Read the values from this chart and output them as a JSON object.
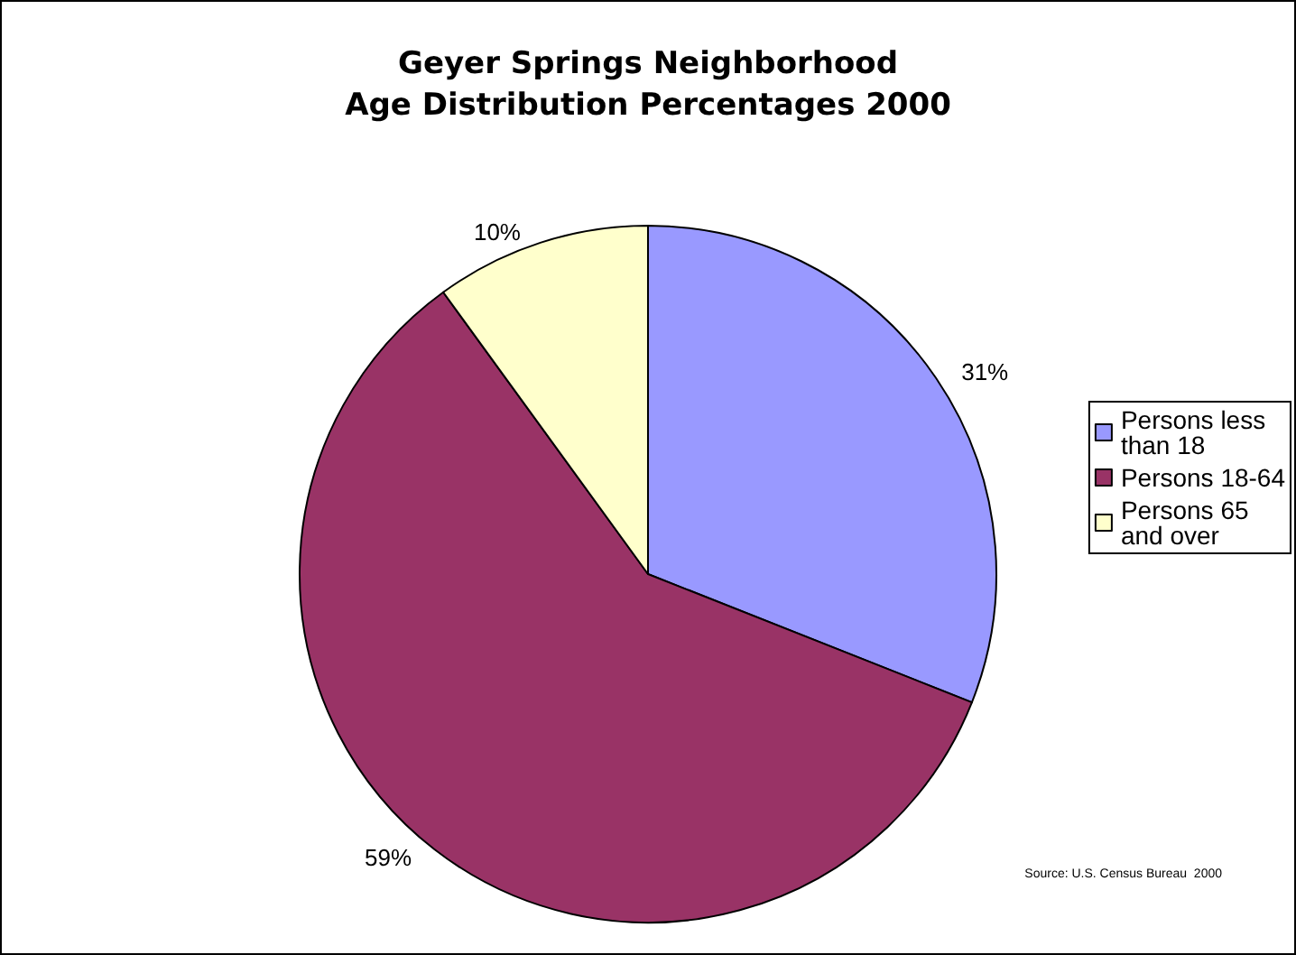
{
  "chart_data": {
    "type": "pie",
    "title": "Geyer Springs Neighborhood\nAge Distribution Percentages 2000",
    "categories": [
      "Persons less than 18",
      "Persons 18-64",
      "Persons 65 and over"
    ],
    "values": [
      31,
      59,
      10
    ],
    "colors": [
      "#9999ff",
      "#993366",
      "#ffffcc"
    ],
    "value_labels": [
      "31%",
      "59%",
      "10%"
    ],
    "legend": "right",
    "annotations": [
      "Source: U.S. Census Bureau  2000"
    ]
  }
}
